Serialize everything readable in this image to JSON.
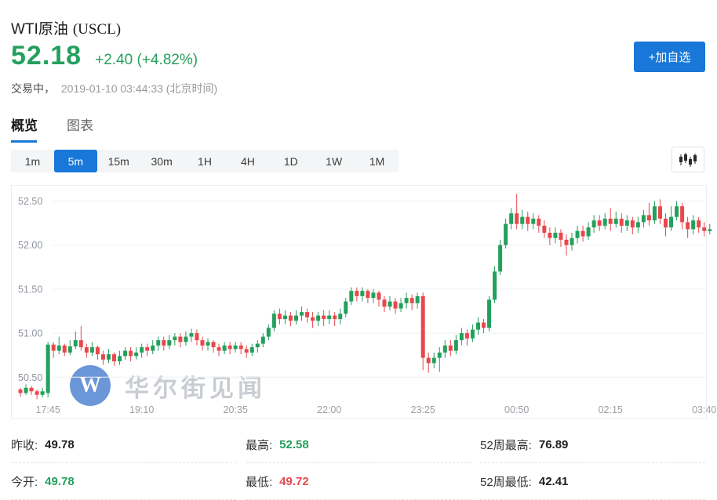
{
  "header": {
    "title": "WTI原油",
    "symbol": "(USCL)",
    "price": "52.18",
    "change": "+2.40 (+4.82%)",
    "status": "交易中，",
    "timestamp": "2019-01-10 03:44:33",
    "timezone": "(北京时间)",
    "watchlist_button": "+加自选"
  },
  "tabs": [
    {
      "label": "概览",
      "active": true
    },
    {
      "label": "图表",
      "active": false
    }
  ],
  "ranges": {
    "options": [
      "1m",
      "5m",
      "15m",
      "30m",
      "1H",
      "4H",
      "1D",
      "1W",
      "1M"
    ],
    "selected": "5m"
  },
  "colors": {
    "up": "#23a05d",
    "down": "#e8484c",
    "accent": "#1877d8",
    "grid": "#eef0f3",
    "y_axis_text": "#8f959e",
    "x_axis_text": "#9aa0a6"
  },
  "watermark": {
    "logo": "W",
    "text": "华尔街见闻"
  },
  "chart_data": {
    "type": "candlestick",
    "interval": "5m",
    "y_ticks": [
      52.5,
      52.0,
      51.5,
      51.0,
      50.5
    ],
    "x_ticks": [
      "17:45",
      "19:10",
      "20:35",
      "22:00",
      "23:25",
      "00:50",
      "02:15",
      "03:40"
    ],
    "x_tick_first_index": 5,
    "x_tick_step": 17,
    "ylim": [
      50.18,
      52.68
    ],
    "candles": [
      [
        50.36,
        50.32,
        50.28,
        50.38
      ],
      [
        50.32,
        50.38,
        50.3,
        50.42
      ],
      [
        50.38,
        50.34,
        50.3,
        50.4
      ],
      [
        50.34,
        50.3,
        50.25,
        50.36
      ],
      [
        50.3,
        50.34,
        50.27,
        50.38
      ],
      [
        50.32,
        50.87,
        50.27,
        50.9
      ],
      [
        50.87,
        50.8,
        50.72,
        50.9
      ],
      [
        50.8,
        50.86,
        50.76,
        50.96
      ],
      [
        50.86,
        50.78,
        50.74,
        50.88
      ],
      [
        50.78,
        50.85,
        50.75,
        50.92
      ],
      [
        50.85,
        50.92,
        50.82,
        51.02
      ],
      [
        50.92,
        50.84,
        50.8,
        51.08
      ],
      [
        50.84,
        50.78,
        50.72,
        50.88
      ],
      [
        50.78,
        50.84,
        50.74,
        50.9
      ],
      [
        50.84,
        50.76,
        50.7,
        50.86
      ],
      [
        50.76,
        50.7,
        50.64,
        50.8
      ],
      [
        50.7,
        50.76,
        50.66,
        50.82
      ],
      [
        50.76,
        50.68,
        50.63,
        50.78
      ],
      [
        50.68,
        50.74,
        50.64,
        50.8
      ],
      [
        50.74,
        50.8,
        50.7,
        50.84
      ],
      [
        50.8,
        50.74,
        50.68,
        50.84
      ],
      [
        50.74,
        50.78,
        50.7,
        50.84
      ],
      [
        50.78,
        50.84,
        50.72,
        50.88
      ],
      [
        50.84,
        50.8,
        50.74,
        50.88
      ],
      [
        50.8,
        50.86,
        50.76,
        50.92
      ],
      [
        50.86,
        50.92,
        50.8,
        50.96
      ],
      [
        50.92,
        50.86,
        50.8,
        50.96
      ],
      [
        50.86,
        50.92,
        50.82,
        50.98
      ],
      [
        50.92,
        50.96,
        50.86,
        51.0
      ],
      [
        50.96,
        50.9,
        50.84,
        51.0
      ],
      [
        50.9,
        50.96,
        50.86,
        51.02
      ],
      [
        50.96,
        51.0,
        50.9,
        51.05
      ],
      [
        51.0,
        50.92,
        50.86,
        51.04
      ],
      [
        50.92,
        50.86,
        50.8,
        50.96
      ],
      [
        50.86,
        50.9,
        50.8,
        50.94
      ],
      [
        50.9,
        50.84,
        50.78,
        50.92
      ],
      [
        50.84,
        50.8,
        50.74,
        50.88
      ],
      [
        50.8,
        50.86,
        50.76,
        50.9
      ],
      [
        50.86,
        50.82,
        50.76,
        50.9
      ],
      [
        50.82,
        50.86,
        50.78,
        50.9
      ],
      [
        50.86,
        50.82,
        50.76,
        50.9
      ],
      [
        50.82,
        50.78,
        50.72,
        50.86
      ],
      [
        50.78,
        50.84,
        50.74,
        50.88
      ],
      [
        50.84,
        50.88,
        50.78,
        50.92
      ],
      [
        50.88,
        50.96,
        50.84,
        51.0
      ],
      [
        50.96,
        51.06,
        50.92,
        51.1
      ],
      [
        51.06,
        51.22,
        51.02,
        51.26
      ],
      [
        51.22,
        51.16,
        51.1,
        51.28
      ],
      [
        51.16,
        51.2,
        51.1,
        51.26
      ],
      [
        51.2,
        51.14,
        51.08,
        51.24
      ],
      [
        51.14,
        51.2,
        51.1,
        51.26
      ],
      [
        51.2,
        51.24,
        51.14,
        51.3
      ],
      [
        51.24,
        51.18,
        51.12,
        51.28
      ],
      [
        51.18,
        51.14,
        51.06,
        51.24
      ],
      [
        51.14,
        51.2,
        51.08,
        51.24
      ],
      [
        51.2,
        51.16,
        51.08,
        51.26
      ],
      [
        51.16,
        51.2,
        51.1,
        51.26
      ],
      [
        51.2,
        51.16,
        51.08,
        51.24
      ],
      [
        51.16,
        51.22,
        51.1,
        51.28
      ],
      [
        51.22,
        51.36,
        51.18,
        51.4
      ],
      [
        51.36,
        51.48,
        51.32,
        51.52
      ],
      [
        51.48,
        51.42,
        51.36,
        51.52
      ],
      [
        51.42,
        51.48,
        51.36,
        51.52
      ],
      [
        51.48,
        51.4,
        51.34,
        51.5
      ],
      [
        51.4,
        51.46,
        51.34,
        51.5
      ],
      [
        51.46,
        51.38,
        51.3,
        51.48
      ],
      [
        51.38,
        51.3,
        51.24,
        51.42
      ],
      [
        51.3,
        51.36,
        51.26,
        51.42
      ],
      [
        51.36,
        51.28,
        51.22,
        51.4
      ],
      [
        51.28,
        51.34,
        51.24,
        51.4
      ],
      [
        51.34,
        51.4,
        51.28,
        51.46
      ],
      [
        51.4,
        51.34,
        51.26,
        51.44
      ],
      [
        51.34,
        51.42,
        51.28,
        51.46
      ],
      [
        51.42,
        50.72,
        50.58,
        51.46
      ],
      [
        50.72,
        50.66,
        50.55,
        50.78
      ],
      [
        50.66,
        50.72,
        50.6,
        50.78
      ],
      [
        50.72,
        50.78,
        50.56,
        50.84
      ],
      [
        50.78,
        50.86,
        50.72,
        50.92
      ],
      [
        50.86,
        50.8,
        50.74,
        50.92
      ],
      [
        50.8,
        50.92,
        50.76,
        50.98
      ],
      [
        50.92,
        51.0,
        50.86,
        51.06
      ],
      [
        51.0,
        50.94,
        50.86,
        51.04
      ],
      [
        50.94,
        51.04,
        50.9,
        51.1
      ],
      [
        51.04,
        51.12,
        50.98,
        51.18
      ],
      [
        51.12,
        51.06,
        51.0,
        51.16
      ],
      [
        51.06,
        51.38,
        51.02,
        51.42
      ],
      [
        51.38,
        51.7,
        51.34,
        51.76
      ],
      [
        51.7,
        52.0,
        51.66,
        52.06
      ],
      [
        52.0,
        52.24,
        51.96,
        52.3
      ],
      [
        52.24,
        52.36,
        52.18,
        52.42
      ],
      [
        52.36,
        52.24,
        52.18,
        52.58
      ],
      [
        52.24,
        52.32,
        52.18,
        52.4
      ],
      [
        52.32,
        52.24,
        52.16,
        52.38
      ],
      [
        52.24,
        52.3,
        52.18,
        52.36
      ],
      [
        52.3,
        52.22,
        52.14,
        52.34
      ],
      [
        52.22,
        52.14,
        52.08,
        52.28
      ],
      [
        52.14,
        52.08,
        52.0,
        52.2
      ],
      [
        52.08,
        52.14,
        52.02,
        52.2
      ],
      [
        52.14,
        52.06,
        51.98,
        52.18
      ],
      [
        52.06,
        52.0,
        51.88,
        52.12
      ],
      [
        52.0,
        52.08,
        51.94,
        52.14
      ],
      [
        52.08,
        52.16,
        52.02,
        52.22
      ],
      [
        52.16,
        52.1,
        52.04,
        52.22
      ],
      [
        52.1,
        52.2,
        52.06,
        52.26
      ],
      [
        52.2,
        52.28,
        52.14,
        52.34
      ],
      [
        52.28,
        52.22,
        52.16,
        52.34
      ],
      [
        52.22,
        52.3,
        52.18,
        52.36
      ],
      [
        52.3,
        52.24,
        52.16,
        52.42
      ],
      [
        52.24,
        52.3,
        52.2,
        52.38
      ],
      [
        52.3,
        52.22,
        52.14,
        52.36
      ],
      [
        52.22,
        52.28,
        52.16,
        52.34
      ],
      [
        52.28,
        52.2,
        52.12,
        52.32
      ],
      [
        52.2,
        52.26,
        52.14,
        52.32
      ],
      [
        52.26,
        52.34,
        52.2,
        52.4
      ],
      [
        52.34,
        52.28,
        52.22,
        52.48
      ],
      [
        52.28,
        52.44,
        52.24,
        52.5
      ],
      [
        52.44,
        52.3,
        52.24,
        52.52
      ],
      [
        52.3,
        52.2,
        52.1,
        52.36
      ],
      [
        52.2,
        52.32,
        52.16,
        52.44
      ],
      [
        52.32,
        52.44,
        52.28,
        52.5
      ],
      [
        52.44,
        52.26,
        52.18,
        52.48
      ],
      [
        52.26,
        52.18,
        52.08,
        52.32
      ],
      [
        52.18,
        52.28,
        52.12,
        52.34
      ],
      [
        52.28,
        52.2,
        52.14,
        52.32
      ],
      [
        52.2,
        52.16,
        52.1,
        52.26
      ],
      [
        52.16,
        52.18,
        52.12,
        52.24
      ]
    ]
  },
  "stats": {
    "items": [
      {
        "label": "昨收:",
        "value": "49.78",
        "tone": "dark"
      },
      {
        "label": "最高:",
        "value": "52.58",
        "tone": "up"
      },
      {
        "label": "52周最高:",
        "value": "76.89",
        "tone": "dark"
      },
      {
        "label": "今开:",
        "value": "49.78",
        "tone": "up"
      },
      {
        "label": "最低:",
        "value": "49.72",
        "tone": "down"
      },
      {
        "label": "52周最低:",
        "value": "42.41",
        "tone": "dark"
      }
    ]
  }
}
